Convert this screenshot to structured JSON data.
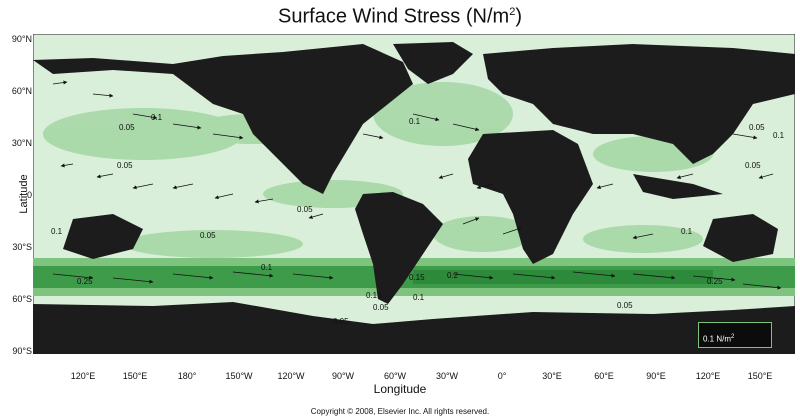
{
  "title": "Surface Wind Stress (N/m",
  "title_sup": "2",
  "title_close": ")",
  "ylabel": "Latitude",
  "xlabel": "Longitude",
  "copyright": "Copyright © 2008, Elsevier Inc. All rights reserved.",
  "lat_ticks": [
    "90°N",
    "60°N",
    "30°N",
    "0",
    "30°S",
    "60°S",
    "90°S"
  ],
  "lon_ticks": [
    "120°E",
    "150°E",
    "180°",
    "150°W",
    "120°W",
    "90°W",
    "60°W",
    "30°W",
    "0°",
    "30°E",
    "60°E",
    "90°E",
    "120°E",
    "150°E"
  ],
  "legend": {
    "label": "0.1 N/m",
    "sup": "2"
  },
  "contour_labels": [
    "0.1",
    "0.05",
    "0.1",
    "0.05",
    "0.05",
    "0.1",
    "0.05",
    "0.05",
    "0.1",
    "0.05",
    "0.1",
    "0.25",
    "0.15",
    "0.2",
    "0.15",
    "0.1",
    "0.05",
    "0.25",
    "0.05",
    "0.1",
    "0.05"
  ],
  "colors": {
    "land": "#1c1c1c",
    "ocean_low": "#d9efd9",
    "ocean_mid": "#a6d7a6",
    "ocean_high": "#3e9b4a",
    "background": "#ffffff"
  }
}
